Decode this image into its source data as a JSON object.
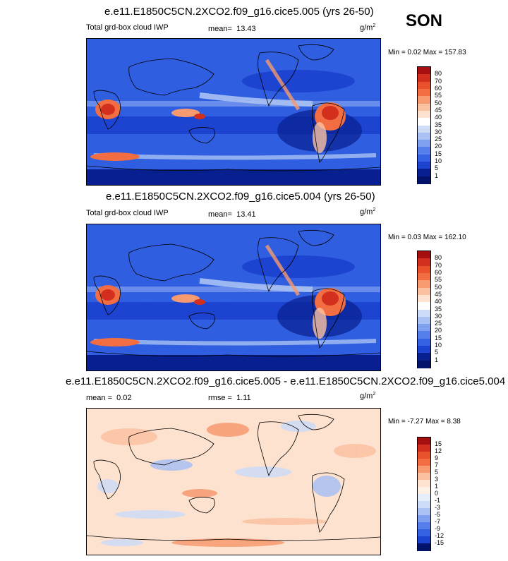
{
  "season": "SON",
  "panels": [
    {
      "title": "e.e11.E1850C5CN.2XCO2.f09_g16.cice5.005 (yrs 26-50)",
      "left_label": "Total grd-box cloud IWP",
      "mean_label": "mean=",
      "mean_value": "13.43",
      "unit_base": "g/m",
      "unit_exp": "2",
      "min_max": "Min =   0.02 Max = 157.83"
    },
    {
      "title": "e.e11.E1850C5CN.2XCO2.f09_g16.cice5.004 (yrs 26-50)",
      "left_label": "Total grd-box cloud IWP",
      "mean_label": "mean=",
      "mean_value": "13.41",
      "unit_base": "g/m",
      "unit_exp": "2",
      "min_max": "Min =   0.03 Max = 162.10"
    },
    {
      "title": "e.e11.E1850C5CN.2XCO2.f09_g16.cice5.005 - e.e11.E1850C5CN.2XCO2.f09_g16.cice5.004",
      "mean_label": "mean =",
      "mean_value": "0.02",
      "rmse_label": "rmse =",
      "rmse_value": "1.11",
      "unit_base": "g/m",
      "unit_exp": "2",
      "min_max": "Min =  -7.27 Max =   8.38"
    }
  ],
  "colorbars": {
    "abs_levels": [
      "80",
      "70",
      "60",
      "55",
      "50",
      "45",
      "40",
      "35",
      "30",
      "25",
      "20",
      "15",
      "10",
      "5",
      "1"
    ],
    "abs_colors": [
      "#a50f0f",
      "#d22f1f",
      "#e8512b",
      "#f26e42",
      "#f79a70",
      "#fbc2a2",
      "#fde2d0",
      "#ffffff",
      "#cddcf7",
      "#a9c1f3",
      "#7fa0ef",
      "#557fea",
      "#3561e3",
      "#1d43d1",
      "#08208f",
      "#03126b"
    ],
    "diff_levels": [
      "15",
      "12",
      "9",
      "7",
      "5",
      "3",
      "1",
      "0",
      "-1",
      "-3",
      "-5",
      "-7",
      "-9",
      "-12",
      "-15"
    ],
    "diff_colors": [
      "#a50f0f",
      "#d22f1f",
      "#e8512b",
      "#f26e42",
      "#f79a70",
      "#fbc2a2",
      "#fde2d0",
      "#fff0e6",
      "#e6eefc",
      "#cddcf7",
      "#a9c1f3",
      "#7fa0ef",
      "#557fea",
      "#3561e3",
      "#1d43d1",
      "#03126b"
    ]
  }
}
